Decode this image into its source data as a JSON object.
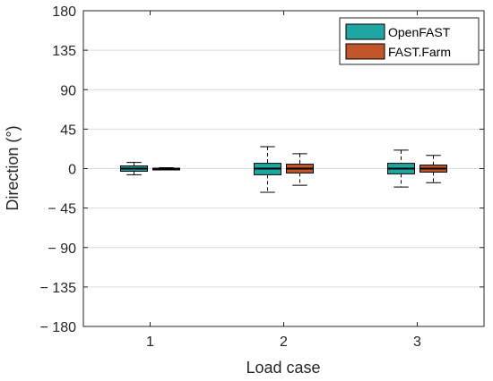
{
  "chart_data": {
    "type": "boxplot",
    "xlabel": "Load case",
    "ylabel": "Direction (°)",
    "categories": [
      "1",
      "2",
      "3"
    ],
    "ylim": [
      -180,
      180
    ],
    "yticks": [
      180,
      135,
      90,
      45,
      0,
      -45,
      -90,
      -135,
      -180
    ],
    "ytick_labels": [
      "180",
      "135",
      "90",
      "45",
      "0",
      "− 45",
      "− 90",
      "− 135",
      "− 180"
    ],
    "grid": "horizontal",
    "legend_position": "top-right",
    "series": [
      {
        "name": "OpenFAST",
        "color": "#1ea7a2",
        "boxes": [
          {
            "whisker_low": -7,
            "q1": -3,
            "median": 0,
            "q3": 3,
            "whisker_high": 7
          },
          {
            "whisker_low": -27,
            "q1": -7,
            "median": 0,
            "q3": 6,
            "whisker_high": 25
          },
          {
            "whisker_low": -21,
            "q1": -6,
            "median": 0,
            "q3": 6,
            "whisker_high": 21
          }
        ]
      },
      {
        "name": "FAST.Farm",
        "color": "#c0562a",
        "boxes": [
          {
            "whisker_low": -1,
            "q1": -0.5,
            "median": 0,
            "q3": 0.5,
            "whisker_high": 1
          },
          {
            "whisker_low": -19,
            "q1": -5,
            "median": 0,
            "q3": 5,
            "whisker_high": 17
          },
          {
            "whisker_low": -16,
            "q1": -4,
            "median": 0,
            "q3": 4,
            "whisker_high": 15
          }
        ]
      }
    ]
  }
}
